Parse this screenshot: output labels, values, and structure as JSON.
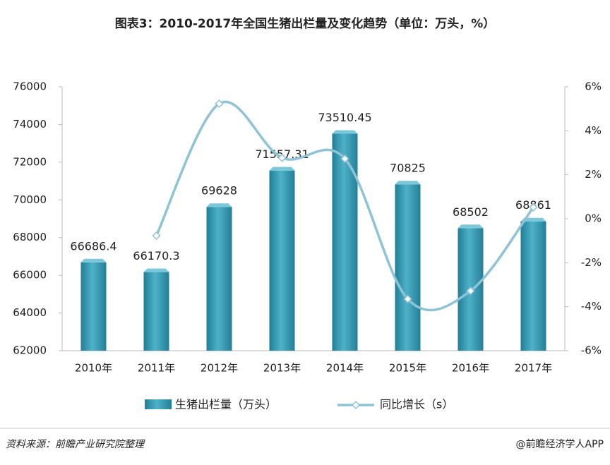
{
  "chart_data": {
    "type": "bar",
    "title": "图表3：2010-2017年全国生猪出栏量及变化趋势（单位：万头，%）",
    "categories": [
      "2010年",
      "2011年",
      "2012年",
      "2013年",
      "2014年",
      "2015年",
      "2016年",
      "2017年"
    ],
    "series": [
      {
        "name": "生猪出栏量（万头）",
        "type": "bar",
        "color": "#2e91aa",
        "values": [
          66686.4,
          66170.3,
          69628,
          71557.31,
          73510.45,
          70825,
          68502,
          68861
        ]
      },
      {
        "name": "同比增长（s）",
        "type": "line",
        "axis": "y2",
        "color": "#8ec3d5",
        "values": [
          null,
          -0.77,
          5.23,
          2.77,
          2.73,
          -3.65,
          -3.28,
          0.52
        ]
      }
    ],
    "ylim": [
      62000,
      76000
    ],
    "yticks": [
      62000,
      64000,
      66000,
      68000,
      70000,
      72000,
      74000,
      76000
    ],
    "y2lim": [
      -6,
      6
    ],
    "y2ticks": [
      {
        "value": -6,
        "label": "-6%"
      },
      {
        "value": -4,
        "label": "-4%"
      },
      {
        "value": -2,
        "label": "-2%"
      },
      {
        "value": 0,
        "label": "0%"
      },
      {
        "value": 2,
        "label": "2%"
      },
      {
        "value": 4,
        "label": "4%"
      },
      {
        "value": 6,
        "label": "6%"
      }
    ],
    "grid": false,
    "source": "资料来源：前瞻产业研究院整理",
    "credit": "@前瞻经济学人APP"
  }
}
